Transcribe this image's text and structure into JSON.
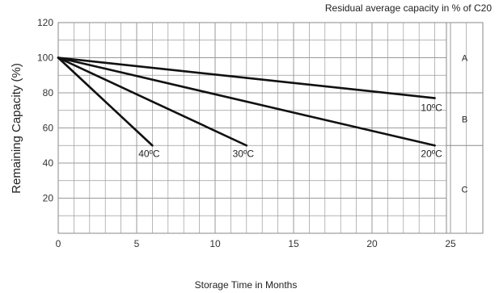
{
  "chart_data": {
    "type": "line",
    "title": "Residual average capacity in % of C20",
    "xlabel": "Storage Time in Months",
    "ylabel": "Remaining Capacity (%)",
    "xlim": [
      0,
      25
    ],
    "ylim": [
      0,
      120
    ],
    "x_ticks": [
      "0",
      "5",
      "10",
      "15",
      "20",
      "25"
    ],
    "y_ticks": [
      "20",
      "40",
      "60",
      "80",
      "100",
      "120"
    ],
    "grid": true,
    "series": [
      {
        "name": "40ºC",
        "x": [
          0,
          6
        ],
        "y": [
          100,
          50
        ]
      },
      {
        "name": "30ºC",
        "x": [
          0,
          12
        ],
        "y": [
          100,
          50
        ]
      },
      {
        "name": "20ºC",
        "x": [
          0,
          24
        ],
        "y": [
          100,
          50
        ]
      },
      {
        "name": "10ºC",
        "x": [
          0,
          24
        ],
        "y": [
          100,
          77
        ]
      }
    ],
    "zones": [
      {
        "label": "A",
        "range": [
          80,
          120
        ]
      },
      {
        "label": "B",
        "range": [
          50,
          80
        ]
      },
      {
        "label": "C",
        "range": [
          0,
          50
        ]
      }
    ]
  }
}
